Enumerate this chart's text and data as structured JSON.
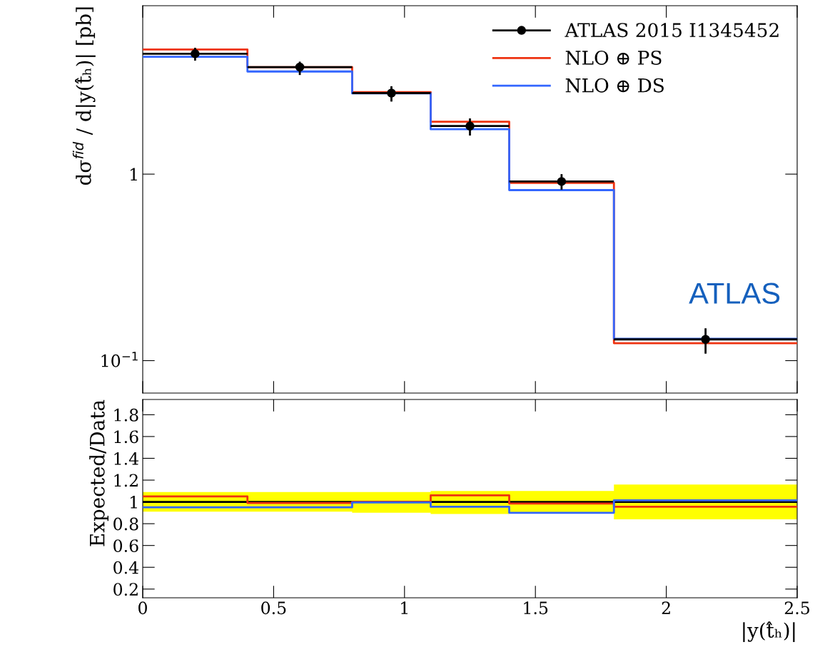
{
  "chart_data": [
    {
      "type": "step",
      "ylabel": "dσ$^{fid}$ / d|y(t̂ₕ)| [pb]",
      "x": [
        0,
        0.4,
        0.8,
        1.1,
        1.4,
        1.8,
        2.5
      ],
      "log": "y",
      "xlim": [
        0,
        2.5
      ],
      "xticks": [
        0,
        0.5,
        1,
        1.5,
        2,
        2.5
      ],
      "ylim": [
        0.067,
        8
      ],
      "yticks": [
        {
          "value": 0.1,
          "label": "10$^{−1}$"
        },
        {
          "value": 1,
          "label": "1"
        }
      ],
      "tick_labels": "y",
      "legend": "top right",
      "grid": false,
      "annotations": [
        "ATLAS"
      ],
      "series": [
        {
          "name": "ATLAS 2015 I1345452",
          "type": "scatter",
          "marker": "circle",
          "color": "#000000",
          "x": [
            0.2,
            0.6,
            0.95,
            1.25,
            1.6,
            2.15
          ],
          "values": [
            4.42,
            3.75,
            2.72,
            1.81,
            0.913,
            0.13
          ],
          "errors": [
            [
              4.06,
              4.76
            ],
            [
              3.4,
              4.01
            ],
            [
              2.45,
              2.96
            ],
            [
              1.61,
              1.99
            ],
            [
              0.825,
              1.0
            ],
            [
              0.109,
              0.149
            ]
          ],
          "xerrors": [
            [
              0,
              0.4
            ],
            [
              0.4,
              0.8
            ],
            [
              0.8,
              1.1
            ],
            [
              1.1,
              1.4
            ],
            [
              1.4,
              1.8
            ],
            [
              1.8,
              2.5
            ]
          ]
        },
        {
          "name": "NLO ⊕ PS",
          "color": "#ee3311",
          "values": [
            4.66,
            3.75,
            2.75,
            1.91,
            0.898,
            0.124,
            0.124
          ]
        },
        {
          "name": "NLO ⊕ DS",
          "color": "#3366ff",
          "values": [
            4.26,
            3.55,
            2.71,
            1.74,
            0.821,
            0.131,
            0.131
          ]
        }
      ]
    },
    {
      "type": "step",
      "ylabel": "Expected/Data",
      "xlabel": "|y(t̂ₕ)|",
      "x": [
        0,
        0.4,
        0.8,
        1.1,
        1.4,
        1.8,
        2.5
      ],
      "xlim": [
        0,
        2.5
      ],
      "xticks": [
        0,
        0.5,
        1,
        1.5,
        2,
        2.5
      ],
      "ylim": [
        0.12,
        1.94
      ],
      "yticks": [
        {
          "value": 0.2,
          "label": "0.2"
        },
        {
          "value": 0.4,
          "label": "0.4"
        },
        {
          "value": 0.6,
          "label": "0.6"
        },
        {
          "value": 0.8,
          "label": "0.8"
        },
        1,
        {
          "value": 1.2,
          "label": "1.2"
        },
        {
          "value": 1.4,
          "label": "1.4"
        },
        {
          "value": 1.6,
          "label": "1.6"
        },
        {
          "value": 1.8,
          "label": "1.8"
        }
      ],
      "grid": false,
      "series": [
        {
          "color": "#000000",
          "values": [
            1,
            1,
            1,
            1,
            1,
            1,
            1
          ],
          "lower": [
            0.91,
            0.91,
            0.9,
            0.89,
            0.9,
            0.84,
            0.84
          ],
          "upper": [
            1.09,
            1.09,
            1.09,
            1.1,
            1.1,
            1.16,
            1.16
          ]
        },
        {
          "color": "#ee3311",
          "values": [
            1.05,
            0.99,
            1.0,
            1.06,
            0.985,
            0.955,
            0.955
          ]
        },
        {
          "color": "#3366ff",
          "values": [
            0.95,
            0.95,
            0.995,
            0.955,
            0.9,
            1.015,
            1.015
          ]
        }
      ]
    }
  ]
}
